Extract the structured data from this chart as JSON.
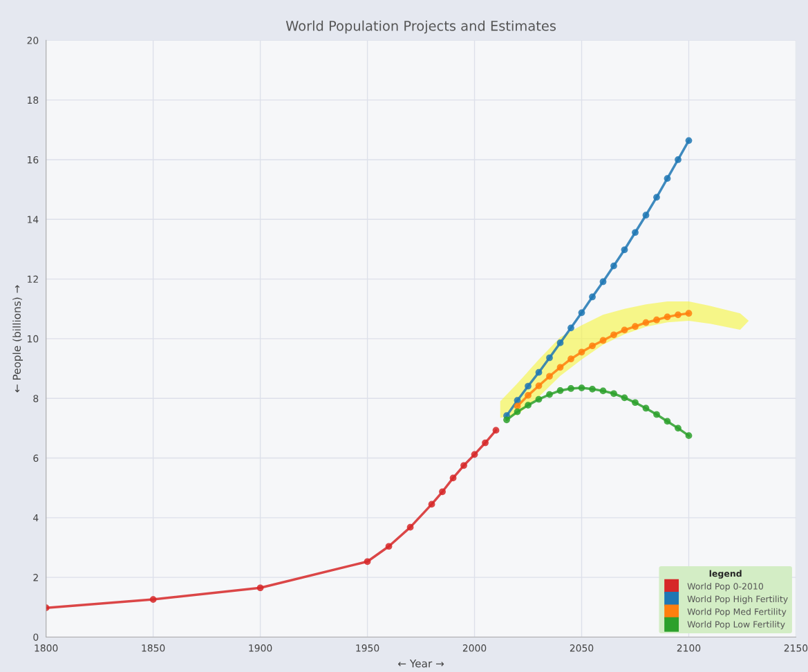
{
  "chart_data": {
    "type": "line",
    "title": "World Population Projects and Estimates",
    "xlabel": "← Year →",
    "ylabel": "← People (billions) →",
    "legend_title": "legend",
    "xlim": [
      1800,
      2150
    ],
    "xticks": [
      1800,
      1850,
      1900,
      1950,
      2000,
      2050,
      2100,
      2150
    ],
    "ylim": [
      0,
      20
    ],
    "yticks": [
      0,
      2,
      4,
      6,
      8,
      10,
      12,
      14,
      16,
      18,
      20
    ],
    "grid": true,
    "legend": "bottom right",
    "marker": "circle",
    "line_style": "solid",
    "series": [
      {
        "name": "World Pop 0-2010",
        "color": "#d62728",
        "x": [
          1800,
          1850,
          1900,
          1950,
          1960,
          1970,
          1980,
          1985,
          1990,
          1995,
          2000,
          2005,
          2010
        ],
        "values": [
          0.98,
          1.26,
          1.65,
          2.53,
          3.04,
          3.68,
          4.45,
          4.87,
          5.33,
          5.75,
          6.12,
          6.51,
          6.93
        ]
      },
      {
        "name": "World Pop High Fertility",
        "color": "#1f77b4",
        "x": [
          2015,
          2020,
          2025,
          2030,
          2035,
          2040,
          2045,
          2050,
          2055,
          2060,
          2065,
          2070,
          2075,
          2080,
          2085,
          2090,
          2095,
          2100
        ],
        "values": [
          7.42,
          7.93,
          8.41,
          8.87,
          9.36,
          9.86,
          10.36,
          10.87,
          11.4,
          11.91,
          12.44,
          12.98,
          13.56,
          14.14,
          14.74,
          15.37,
          16.0,
          16.64
        ]
      },
      {
        "name": "World Pop Med Fertility",
        "color": "#ff7f0e",
        "x": [
          2020,
          2025,
          2030,
          2035,
          2040,
          2045,
          2050,
          2055,
          2060,
          2065,
          2070,
          2075,
          2080,
          2085,
          2090,
          2095,
          2100
        ],
        "values": [
          7.74,
          8.1,
          8.42,
          8.74,
          9.04,
          9.32,
          9.55,
          9.76,
          9.94,
          10.13,
          10.29,
          10.41,
          10.54,
          10.63,
          10.73,
          10.8,
          10.85
        ]
      },
      {
        "name": "World Pop Low Fertility",
        "color": "#2ca02c",
        "x": [
          2015,
          2020,
          2025,
          2030,
          2035,
          2040,
          2045,
          2050,
          2055,
          2060,
          2065,
          2070,
          2075,
          2080,
          2085,
          2090,
          2095,
          2100
        ],
        "values": [
          7.28,
          7.55,
          7.77,
          7.97,
          8.13,
          8.26,
          8.33,
          8.35,
          8.31,
          8.25,
          8.16,
          8.02,
          7.86,
          7.67,
          7.46,
          7.23,
          7.0,
          6.75
        ]
      }
    ]
  }
}
